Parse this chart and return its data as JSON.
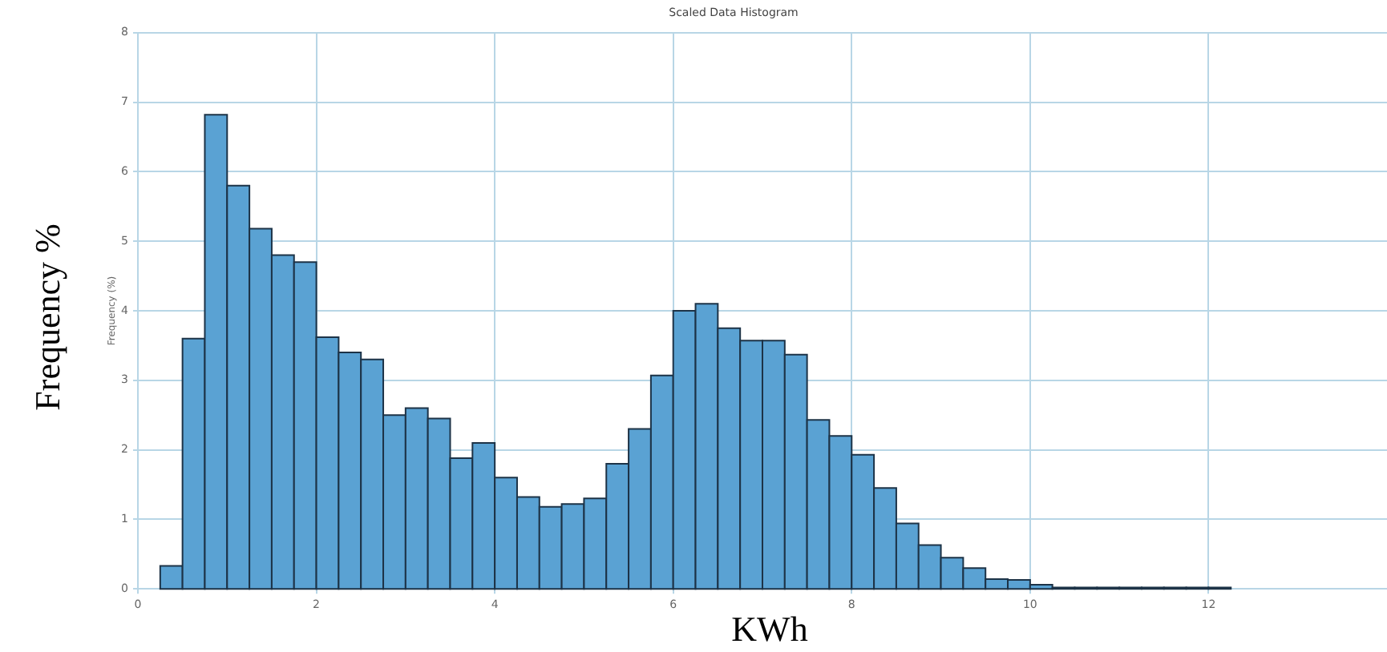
{
  "chart_data": {
    "type": "histogram",
    "title": "Scaled Data Histogram",
    "xlabel": "KWh",
    "ylabel": "Frequency %",
    "annotations": [
      "Frequency (%)"
    ],
    "bins": [
      0.25,
      0.5,
      0.75,
      1,
      1.25,
      1.5,
      1.75,
      2,
      2.25,
      2.5,
      2.75,
      3,
      3.25,
      3.5,
      3.75,
      4,
      4.25,
      4.5,
      4.75,
      5,
      5.25,
      5.5,
      5.75,
      6,
      6.25,
      6.5,
      6.75,
      7,
      7.25,
      7.5,
      7.75,
      8,
      8.25,
      8.5,
      8.75,
      9,
      9.25,
      9.5,
      9.75,
      10,
      10.25,
      10.5,
      10.75,
      11,
      11.25,
      11.5,
      11.75,
      12,
      12.25
    ],
    "values": [
      0.33,
      3.6,
      6.82,
      5.8,
      5.18,
      4.8,
      4.7,
      3.62,
      3.4,
      3.3,
      2.5,
      2.6,
      2.45,
      1.88,
      2.1,
      1.6,
      1.32,
      1.18,
      1.22,
      1.3,
      1.8,
      2.3,
      3.07,
      4.0,
      4.1,
      3.75,
      3.57,
      3.57,
      3.37,
      2.43,
      2.2,
      1.93,
      1.45,
      0.94,
      0.63,
      0.45,
      0.3,
      0.14,
      0.13,
      0.06,
      0.02,
      0.02,
      0.02,
      0.02,
      0.02,
      0.02,
      0.02,
      0.02
    ],
    "color": "#5aa2d3",
    "xlim": [
      0,
      14
    ],
    "xticks": [
      0,
      2,
      4,
      6,
      8,
      10,
      12
    ],
    "ylim": [
      0,
      8
    ],
    "yticks": [
      0,
      1,
      2,
      3,
      4,
      5,
      6,
      7,
      8
    ],
    "grid": true
  }
}
